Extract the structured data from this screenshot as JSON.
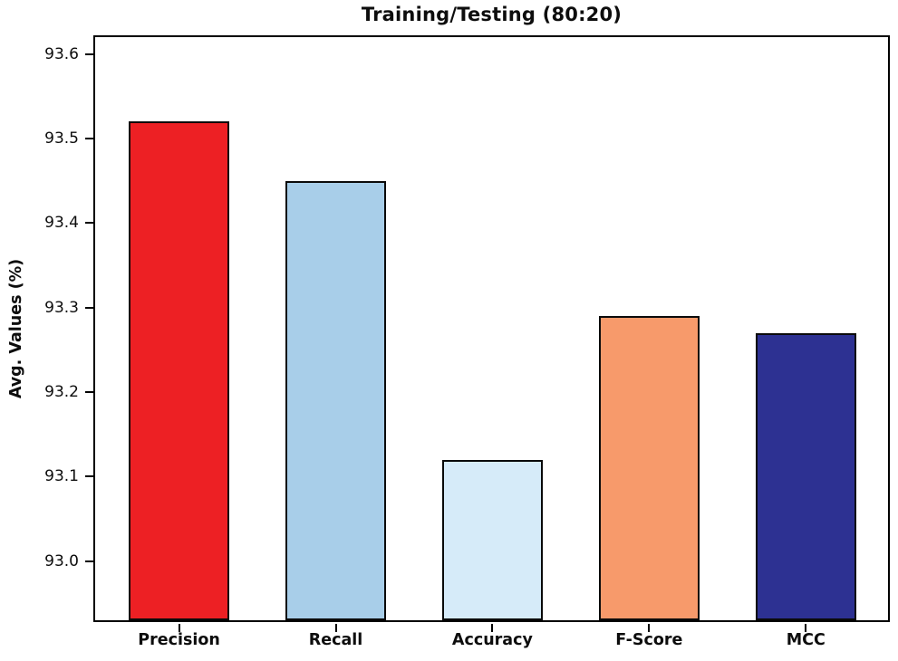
{
  "chart_data": {
    "type": "bar",
    "title": "Training/Testing (80:20)",
    "xlabel": "",
    "ylabel": "Avg. Values (%)",
    "categories": [
      "Precision",
      "Recall",
      "Accuracy",
      "F-Score",
      "MCC"
    ],
    "values": [
      93.52,
      93.45,
      93.12,
      93.29,
      93.27
    ],
    "bar_colors": [
      "#ed2024",
      "#a8cee9",
      "#d6ebf9",
      "#f79a6b",
      "#2d3192"
    ],
    "bar_edge_color": "#0a0a0a",
    "axis_color": "#000000",
    "ylim": [
      92.93,
      93.62
    ],
    "yticks": [
      93.0,
      93.1,
      93.2,
      93.3,
      93.4,
      93.5,
      93.6
    ],
    "ytick_format_decimals": 1,
    "grid": false,
    "legend": null,
    "background_color": "#ffffff"
  }
}
